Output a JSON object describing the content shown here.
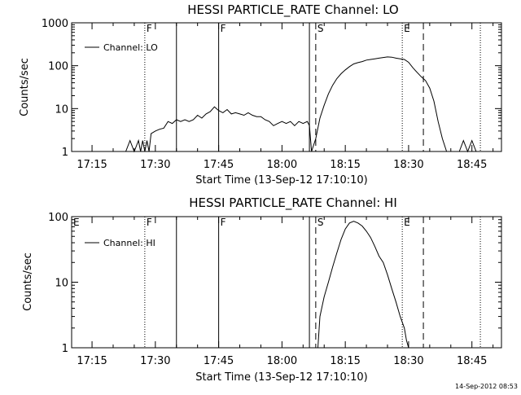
{
  "footer": {
    "timestamp": "14-Sep-2012 08:53"
  },
  "chart_data": [
    {
      "type": "line",
      "title": "HESSI PARTICLE_RATE Channel: LO",
      "xlabel": "Start Time (13-Sep-12 17:10:10)",
      "ylabel": "Counts/sec",
      "yscale": "log",
      "xlim": [
        "17:10:10",
        "18:52:00"
      ],
      "ylim": [
        1,
        1000
      ],
      "x_ticks": [
        "17:15",
        "17:30",
        "17:45",
        "18:00",
        "18:15",
        "18:30",
        "18:45"
      ],
      "y_ticks": [
        "1",
        "10",
        "100",
        "1000"
      ],
      "legend": {
        "position": "top-left",
        "label": "Channel: LO"
      },
      "series": [
        {
          "name": "Channel: LO",
          "x": [
            "17:10:10",
            "17:12",
            "17:13",
            "17:14",
            "17:15",
            "17:16",
            "17:17",
            "17:18",
            "17:19",
            "17:20",
            "17:21",
            "17:22",
            "17:23",
            "17:24",
            "17:25",
            "17:26",
            "17:26:30",
            "17:27",
            "17:27:30",
            "17:28",
            "17:28:30",
            "17:29",
            "17:30",
            "17:31",
            "17:32",
            "17:33",
            "17:34",
            "17:35",
            "17:36",
            "17:37",
            "17:38",
            "17:39",
            "17:40",
            "17:41",
            "17:42",
            "17:43",
            "17:44",
            "17:45",
            "17:46",
            "17:47",
            "17:48",
            "17:49",
            "17:50",
            "17:51",
            "17:52",
            "17:53",
            "17:54",
            "17:55",
            "17:56",
            "17:57",
            "17:58",
            "17:59",
            "18:00",
            "18:01",
            "18:02",
            "18:03",
            "18:04",
            "18:05",
            "18:06",
            "18:06:30",
            "18:07",
            "18:08",
            "18:09",
            "18:10",
            "18:11",
            "18:12",
            "18:13",
            "18:14",
            "18:15",
            "18:16",
            "18:17",
            "18:18",
            "18:19",
            "18:20",
            "18:21",
            "18:22",
            "18:23",
            "18:24",
            "18:25",
            "18:26",
            "18:27",
            "18:28",
            "18:29",
            "18:30",
            "18:31",
            "18:32",
            "18:33",
            "18:34",
            "18:35",
            "18:36",
            "18:37",
            "18:38",
            "18:39",
            "18:40",
            "18:41",
            "18:42",
            "18:43",
            "18:44",
            "18:45",
            "18:46",
            "18:47"
          ],
          "y": [
            1,
            1,
            1,
            1,
            1,
            1,
            1,
            1,
            1,
            1,
            1,
            1,
            1,
            1.8,
            1,
            1.8,
            1,
            1.8,
            1,
            1.8,
            1,
            2.6,
            3,
            3.3,
            3.5,
            5,
            4.5,
            5.5,
            5,
            5.5,
            5,
            5.5,
            7,
            6,
            7.5,
            8.5,
            11,
            9,
            8,
            9.5,
            7.5,
            8,
            7.5,
            7,
            8,
            7,
            6.5,
            6.5,
            5.5,
            5,
            4,
            4.5,
            5,
            4.5,
            5,
            4,
            5,
            4.5,
            5,
            4,
            1,
            2,
            6,
            12,
            22,
            35,
            50,
            65,
            80,
            95,
            110,
            118,
            125,
            135,
            140,
            145,
            150,
            155,
            160,
            158,
            150,
            145,
            140,
            120,
            90,
            70,
            55,
            45,
            30,
            15,
            5,
            2,
            1,
            1,
            1,
            1,
            1.8,
            1,
            1.8,
            1,
            1
          ]
        }
      ],
      "markers": [
        {
          "label": "F",
          "time": "17:27:30",
          "style": "dotted"
        },
        {
          "label": "",
          "time": "17:35",
          "style": "solid"
        },
        {
          "label": "F",
          "time": "17:45",
          "style": "solid"
        },
        {
          "label": "",
          "time": "18:06:30",
          "style": "solid"
        },
        {
          "label": "S",
          "time": "18:08",
          "style": "dashed"
        },
        {
          "label": "E",
          "time": "18:28:30",
          "style": "dotted"
        },
        {
          "label": "",
          "time": "18:33:30",
          "style": "dashed"
        },
        {
          "label": "",
          "time": "18:47",
          "style": "dotted"
        }
      ]
    },
    {
      "type": "line",
      "title": "HESSI PARTICLE_RATE Channel: HI",
      "xlabel": "Start Time (13-Sep-12 17:10:10)",
      "ylabel": "Counts/sec",
      "yscale": "log",
      "xlim": [
        "17:10:10",
        "18:52:00"
      ],
      "ylim": [
        1,
        100
      ],
      "x_ticks": [
        "17:15",
        "17:30",
        "17:45",
        "18:00",
        "18:15",
        "18:30",
        "18:45"
      ],
      "y_ticks": [
        "1",
        "10",
        "100"
      ],
      "corner_label": "E",
      "legend": {
        "position": "top-left",
        "label": "Channel: HI"
      },
      "series": [
        {
          "name": "Channel: HI",
          "x": [
            "18:08:30",
            "18:09",
            "18:10",
            "18:11",
            "18:12",
            "18:13",
            "18:14",
            "18:15",
            "18:16",
            "18:17",
            "18:18",
            "18:19",
            "18:20",
            "18:21",
            "18:22",
            "18:23",
            "18:24",
            "18:25",
            "18:26",
            "18:27",
            "18:28",
            "18:29",
            "18:29:30",
            "18:30"
          ],
          "y": [
            1,
            3,
            6,
            10,
            17,
            28,
            45,
            65,
            80,
            85,
            80,
            72,
            60,
            48,
            35,
            25,
            20,
            13,
            8,
            5,
            3,
            2,
            1.3,
            1
          ]
        }
      ],
      "markers": [
        {
          "label": "F",
          "time": "17:27:30",
          "style": "dotted"
        },
        {
          "label": "",
          "time": "17:35",
          "style": "solid"
        },
        {
          "label": "F",
          "time": "17:45",
          "style": "solid"
        },
        {
          "label": "",
          "time": "18:06:30",
          "style": "solid"
        },
        {
          "label": "S",
          "time": "18:08",
          "style": "dashed"
        },
        {
          "label": "E",
          "time": "18:28:30",
          "style": "dotted"
        },
        {
          "label": "",
          "time": "18:33:30",
          "style": "dashed"
        },
        {
          "label": "",
          "time": "18:47",
          "style": "dotted"
        }
      ]
    }
  ]
}
